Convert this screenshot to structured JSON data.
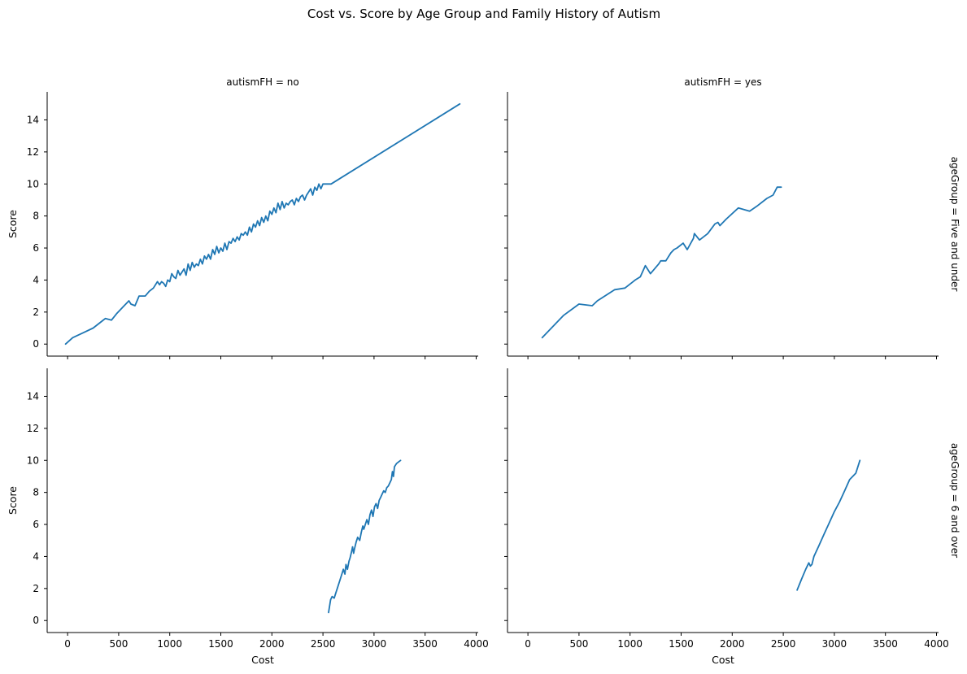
{
  "title": "Cost vs. Score by Age Group and Family History of Autism",
  "colors": {
    "line": "#1f77b4"
  },
  "chart_data": {
    "type": "line",
    "title": "Cost vs. Score by Age Group and Family History of Autism",
    "xlabel": "Cost",
    "ylabel": "Score",
    "xlim": [
      -200,
      4020
    ],
    "ylim": [
      -0.75,
      15.75
    ],
    "xticks": [
      0,
      500,
      1000,
      1500,
      2000,
      2500,
      3000,
      3500,
      4000
    ],
    "yticks": [
      0,
      2,
      4,
      6,
      8,
      10,
      12,
      14
    ],
    "grid": false,
    "legend": "none",
    "panels": [
      {
        "col_title": "autismFH = no",
        "row_title": "",
        "x": [
          -20,
          50,
          150,
          250,
          370,
          430,
          480,
          540,
          600,
          620,
          660,
          700,
          760,
          800,
          840,
          880,
          900,
          920,
          940,
          960,
          980,
          1000,
          1020,
          1040,
          1060,
          1080,
          1100,
          1120,
          1140,
          1160,
          1180,
          1200,
          1220,
          1240,
          1260,
          1280,
          1300,
          1320,
          1340,
          1360,
          1380,
          1400,
          1420,
          1440,
          1460,
          1480,
          1500,
          1520,
          1540,
          1560,
          1580,
          1600,
          1620,
          1640,
          1660,
          1680,
          1700,
          1720,
          1740,
          1760,
          1780,
          1800,
          1820,
          1840,
          1860,
          1880,
          1900,
          1920,
          1940,
          1960,
          1980,
          2000,
          2020,
          2040,
          2060,
          2080,
          2100,
          2120,
          2140,
          2160,
          2180,
          2200,
          2220,
          2240,
          2260,
          2280,
          2300,
          2320,
          2340,
          2360,
          2380,
          2400,
          2420,
          2440,
          2460,
          2480,
          2500,
          2540,
          2580,
          3840
        ],
        "y": [
          0,
          0.4,
          0.7,
          1.0,
          1.6,
          1.5,
          1.9,
          2.3,
          2.7,
          2.5,
          2.4,
          3.0,
          3.0,
          3.3,
          3.5,
          3.9,
          3.7,
          3.9,
          3.8,
          3.6,
          4.0,
          3.9,
          4.4,
          4.2,
          4.1,
          4.6,
          4.3,
          4.5,
          4.7,
          4.3,
          5.0,
          4.6,
          5.1,
          4.8,
          5.0,
          4.9,
          5.3,
          5.0,
          5.5,
          5.3,
          5.6,
          5.3,
          5.9,
          5.6,
          6.1,
          5.7,
          6.0,
          5.8,
          6.3,
          5.9,
          6.4,
          6.3,
          6.6,
          6.4,
          6.7,
          6.5,
          6.9,
          6.8,
          7.0,
          6.8,
          7.3,
          7.0,
          7.5,
          7.3,
          7.7,
          7.4,
          7.9,
          7.6,
          8.0,
          7.7,
          8.3,
          8.1,
          8.5,
          8.2,
          8.8,
          8.4,
          8.9,
          8.5,
          8.8,
          8.7,
          8.9,
          9.0,
          8.7,
          9.1,
          8.9,
          9.2,
          9.3,
          9.0,
          9.3,
          9.5,
          9.7,
          9.3,
          9.8,
          9.6,
          10.0,
          9.7,
          10.0,
          10.0,
          10.0,
          15.0
        ]
      },
      {
        "col_title": "autismFH = yes",
        "row_title": "ageGroup = Five and under",
        "x": [
          140,
          350,
          500,
          630,
          680,
          850,
          950,
          1050,
          1100,
          1150,
          1200,
          1280,
          1300,
          1350,
          1400,
          1430,
          1460,
          1520,
          1560,
          1620,
          1630,
          1680,
          1760,
          1830,
          1860,
          1880,
          1940,
          2060,
          2170,
          2240,
          2340,
          2400,
          2440,
          2480
        ],
        "y": [
          0.4,
          1.8,
          2.5,
          2.4,
          2.7,
          3.4,
          3.5,
          4.0,
          4.2,
          4.9,
          4.4,
          5.0,
          5.2,
          5.2,
          5.7,
          5.9,
          6.0,
          6.3,
          5.9,
          6.6,
          6.9,
          6.5,
          6.9,
          7.5,
          7.6,
          7.4,
          7.8,
          8.5,
          8.3,
          8.6,
          9.1,
          9.3,
          9.8,
          9.8
        ]
      },
      {
        "col_title": "",
        "row_title": "",
        "x": [
          2555,
          2575,
          2590,
          2610,
          2625,
          2640,
          2660,
          2680,
          2700,
          2715,
          2725,
          2740,
          2755,
          2765,
          2780,
          2790,
          2800,
          2810,
          2825,
          2840,
          2860,
          2875,
          2890,
          2900,
          2915,
          2930,
          2945,
          2960,
          2975,
          2990,
          3005,
          3020,
          3035,
          3050,
          3065,
          3080,
          3095,
          3110,
          3125,
          3140,
          3155,
          3170,
          3180,
          3190,
          3200,
          3220,
          3240,
          3260
        ],
        "y": [
          0.5,
          1.3,
          1.5,
          1.4,
          1.7,
          2.0,
          2.4,
          2.8,
          3.2,
          2.9,
          3.5,
          3.2,
          3.7,
          3.9,
          4.3,
          4.6,
          4.2,
          4.5,
          4.9,
          5.2,
          5.0,
          5.5,
          5.9,
          5.7,
          6.0,
          6.3,
          6.0,
          6.6,
          6.9,
          6.5,
          7.1,
          7.3,
          7.0,
          7.5,
          7.7,
          7.9,
          8.1,
          8.0,
          8.3,
          8.4,
          8.6,
          8.8,
          9.3,
          9.0,
          9.6,
          9.8,
          9.9,
          10.0
        ]
      },
      {
        "col_title": "",
        "row_title": "ageGroup = 6 and over",
        "x": [
          2635,
          2680,
          2720,
          2750,
          2765,
          2780,
          2800,
          2850,
          2900,
          2950,
          3000,
          3050,
          3100,
          3150,
          3210,
          3250
        ],
        "y": [
          1.9,
          2.6,
          3.2,
          3.6,
          3.4,
          3.5,
          4.0,
          4.7,
          5.4,
          6.1,
          6.8,
          7.4,
          8.1,
          8.8,
          9.2,
          10.0
        ]
      }
    ]
  }
}
